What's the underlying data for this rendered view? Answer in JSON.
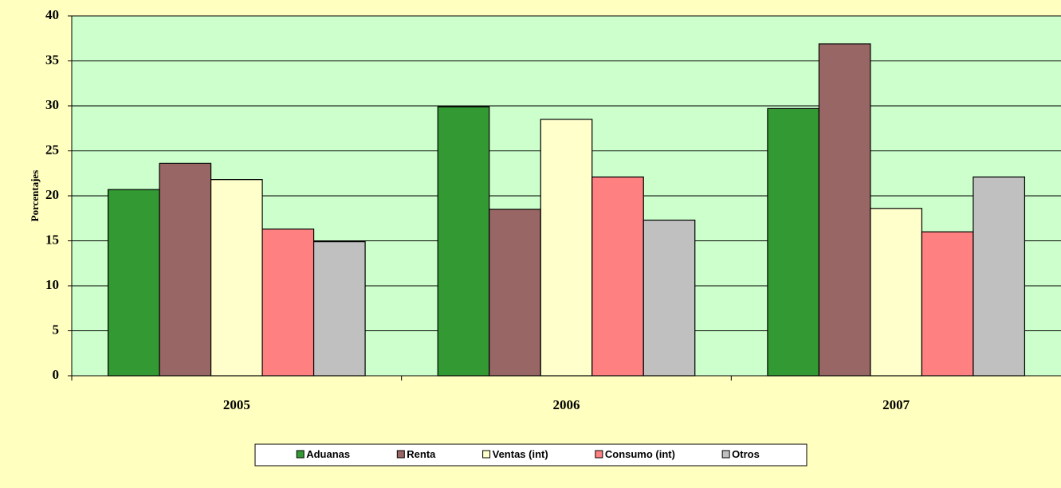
{
  "chart_data": {
    "type": "bar",
    "ylabel": "Porcentajes",
    "categories": [
      "2005",
      "2006",
      "2007"
    ],
    "series": [
      {
        "name": "Aduanas",
        "color": "#339933",
        "values": [
          20.7,
          29.9,
          29.7
        ]
      },
      {
        "name": "Renta",
        "color": "#996666",
        "values": [
          23.6,
          18.5,
          36.9
        ]
      },
      {
        "name": "Ventas (int)",
        "color": "#ffffcc",
        "values": [
          21.8,
          28.5,
          18.6
        ]
      },
      {
        "name": "Consumo (int)",
        "color": "#ff8080",
        "values": [
          16.3,
          22.1,
          16.0
        ]
      },
      {
        "name": "Otros",
        "color": "#c0c0c0",
        "values": [
          14.9,
          17.3,
          22.1
        ]
      }
    ],
    "ylim": [
      0,
      40
    ],
    "yticks": [
      0,
      5,
      10,
      15,
      20,
      25,
      30,
      35,
      40
    ],
    "grid": true,
    "legend": "bottom"
  }
}
